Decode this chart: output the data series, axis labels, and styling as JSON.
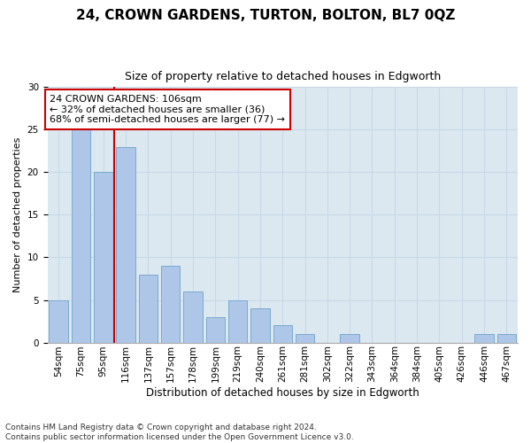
{
  "title": "24, CROWN GARDENS, TURTON, BOLTON, BL7 0QZ",
  "subtitle": "Size of property relative to detached houses in Edgworth",
  "xlabel": "Distribution of detached houses by size in Edgworth",
  "ylabel": "Number of detached properties",
  "bar_labels": [
    "54sqm",
    "75sqm",
    "95sqm",
    "116sqm",
    "137sqm",
    "157sqm",
    "178sqm",
    "199sqm",
    "219sqm",
    "240sqm",
    "261sqm",
    "281sqm",
    "302sqm",
    "322sqm",
    "343sqm",
    "364sqm",
    "384sqm",
    "405sqm",
    "426sqm",
    "446sqm",
    "467sqm"
  ],
  "bar_values": [
    5,
    25,
    20,
    23,
    8,
    9,
    6,
    3,
    5,
    4,
    2,
    1,
    0,
    1,
    0,
    0,
    0,
    0,
    0,
    1,
    1
  ],
  "bar_color": "#aec6e8",
  "bar_edge_color": "#7aaad0",
  "vline_color": "#cc0000",
  "annotation_text": "24 CROWN GARDENS: 106sqm\n← 32% of detached houses are smaller (36)\n68% of semi-detached houses are larger (77) →",
  "annotation_box_color": "#ffffff",
  "annotation_box_edge": "#cc0000",
  "ylim": [
    0,
    30
  ],
  "yticks": [
    0,
    5,
    10,
    15,
    20,
    25,
    30
  ],
  "grid_color": "#c8d8e8",
  "background_color": "#dce8f0",
  "footer": "Contains HM Land Registry data © Crown copyright and database right 2024.\nContains public sector information licensed under the Open Government Licence v3.0.",
  "title_fontsize": 11,
  "subtitle_fontsize": 9,
  "annotation_fontsize": 8,
  "ylabel_fontsize": 8,
  "xlabel_fontsize": 8.5,
  "tick_fontsize": 7.5,
  "footer_fontsize": 6.5
}
